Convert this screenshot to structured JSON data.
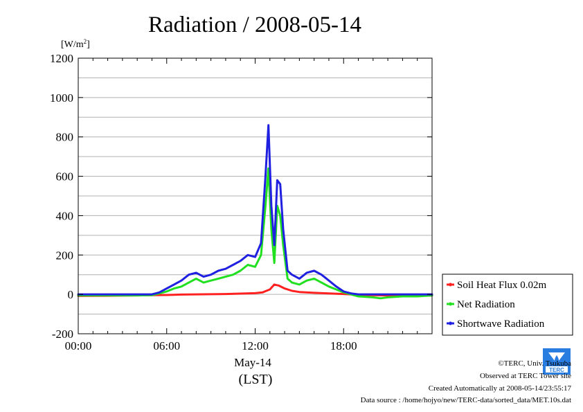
{
  "chart_data": {
    "type": "line",
    "title": "Radiation / 2008-05-14",
    "ylabel_unit": "[W/m",
    "ylabel_unit_sup": "2",
    "ylabel_unit_close": "]",
    "ylim": [
      -200,
      1200
    ],
    "yticks": [
      -200,
      0,
      200,
      400,
      600,
      800,
      1000,
      1200
    ],
    "ytick_labels": [
      "-200",
      "0",
      "200",
      "400",
      "600",
      "800",
      "1000",
      "1200"
    ],
    "xlim": [
      0,
      24
    ],
    "xticks": [
      0,
      6,
      12,
      18
    ],
    "xtick_labels": [
      "00:00",
      "06:00",
      "12:00",
      "18:00"
    ],
    "xlabel_date": "May-14",
    "xlabel": "(LST)",
    "grid": true,
    "legend_position": "lower-right, outside plot",
    "series": [
      {
        "name": "Soil Heat Flux 0.02m",
        "color": "#ff2020",
        "x": [
          0,
          2,
          4,
          5,
          6,
          7,
          8,
          9,
          10,
          11,
          12,
          12.5,
          13,
          13.3,
          13.6,
          14,
          14.5,
          15,
          16,
          17,
          18,
          19,
          20,
          21,
          22,
          23,
          24
        ],
        "y": [
          -8,
          -7,
          -5,
          -4,
          -3,
          -1,
          0,
          1,
          2,
          4,
          6,
          10,
          25,
          50,
          45,
          30,
          18,
          12,
          8,
          5,
          2,
          -2,
          -4,
          -5,
          -5,
          -6,
          -6
        ]
      },
      {
        "name": "Net Radiation",
        "color": "#20e020",
        "x": [
          0,
          2,
          4,
          5,
          5.5,
          6,
          6.5,
          7,
          7.5,
          8,
          8.5,
          9,
          9.5,
          10,
          10.5,
          11,
          11.5,
          12,
          12.4,
          12.7,
          12.9,
          13.1,
          13.3,
          13.5,
          13.7,
          13.9,
          14.2,
          14.5,
          15,
          15.5,
          16,
          16.5,
          17,
          17.5,
          18,
          18.5,
          19,
          20,
          20.5,
          21,
          22,
          23,
          24
        ],
        "y": [
          -5,
          -5,
          -5,
          -4,
          5,
          15,
          30,
          40,
          60,
          80,
          60,
          70,
          80,
          90,
          100,
          120,
          150,
          140,
          200,
          450,
          640,
          330,
          160,
          450,
          400,
          250,
          80,
          60,
          50,
          70,
          80,
          60,
          40,
          25,
          10,
          0,
          -10,
          -15,
          -20,
          -15,
          -10,
          -10,
          -5
        ]
      },
      {
        "name": "Shortwave Radiation",
        "color": "#2020e0",
        "x": [
          0,
          2,
          4,
          5,
          5.5,
          6,
          6.5,
          7,
          7.5,
          8,
          8.5,
          9,
          9.5,
          10,
          10.5,
          11,
          11.5,
          12,
          12.4,
          12.7,
          12.9,
          13.1,
          13.3,
          13.5,
          13.7,
          13.9,
          14.2,
          14.5,
          15,
          15.5,
          16,
          16.5,
          17,
          17.5,
          18,
          18.5,
          19,
          20,
          20.5,
          21,
          22,
          23,
          24
        ],
        "y": [
          0,
          0,
          0,
          0,
          10,
          30,
          50,
          70,
          100,
          110,
          90,
          100,
          120,
          130,
          150,
          170,
          200,
          190,
          260,
          600,
          860,
          450,
          250,
          580,
          560,
          330,
          120,
          100,
          80,
          110,
          120,
          100,
          70,
          40,
          15,
          5,
          0,
          0,
          0,
          0,
          0,
          0,
          0
        ]
      }
    ]
  },
  "credits": {
    "copyright": "©TERC, Univ. Tsukuba",
    "site": "Observed at TERC Tower site",
    "created": "Created Automatically at 2008-05-14/23:55:17",
    "source": "Data source : /home/hojyo/new/TERC-data/sorted_data/MET.10s.dat"
  },
  "logo": {
    "text": "TERC",
    "color": "#2a7de0"
  }
}
